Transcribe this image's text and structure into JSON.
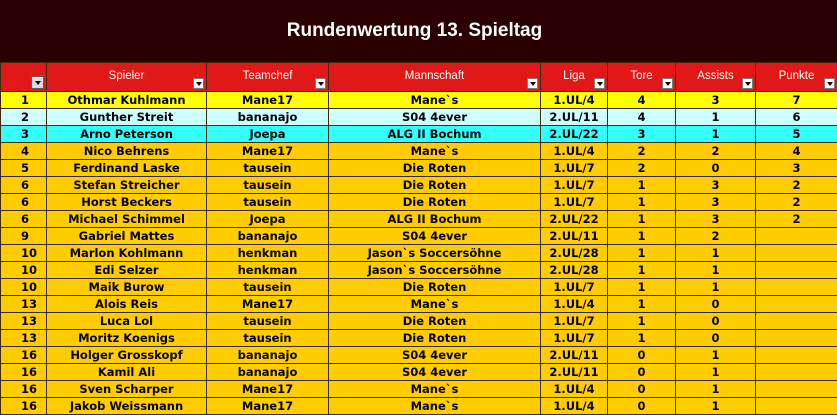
{
  "title": "Rundenwertung 13. Spieltag",
  "columns": [
    "",
    "Spieler",
    "Teamchef",
    "Mannschaft",
    "Liga",
    "Tore",
    "Assists",
    "Punkte"
  ],
  "colors": {
    "title_bg": "#2b0000",
    "header_bg": "#e01818",
    "row_first": "#ffff00",
    "row_second": "#ccffff",
    "row_third": "#33ffff",
    "row_default": "#ffcc00"
  },
  "rows": [
    {
      "rank": "1",
      "spieler": "Othmar Kuhlmann",
      "teamchef": "Mane17",
      "mannschaft": "Mane`s",
      "liga": "1.UL/4",
      "tore": "4",
      "assists": "3",
      "punkte": "7"
    },
    {
      "rank": "2",
      "spieler": "Gunther Streit",
      "teamchef": "bananajo",
      "mannschaft": "S04 4ever",
      "liga": "2.UL/11",
      "tore": "4",
      "assists": "1",
      "punkte": "6"
    },
    {
      "rank": "3",
      "spieler": "Arno Peterson",
      "teamchef": "Joepa",
      "mannschaft": "ALG II Bochum",
      "liga": "2.UL/22",
      "tore": "3",
      "assists": "1",
      "punkte": "5"
    },
    {
      "rank": "4",
      "spieler": "Nico Behrens",
      "teamchef": "Mane17",
      "mannschaft": "Mane`s",
      "liga": "1.UL/4",
      "tore": "2",
      "assists": "2",
      "punkte": "4"
    },
    {
      "rank": "5",
      "spieler": "Ferdinand Laske",
      "teamchef": "tausein",
      "mannschaft": "Die Roten",
      "liga": "1.UL/7",
      "tore": "2",
      "assists": "0",
      "punkte": "3"
    },
    {
      "rank": "6",
      "spieler": "Stefan Streicher",
      "teamchef": "tausein",
      "mannschaft": "Die Roten",
      "liga": "1.UL/7",
      "tore": "1",
      "assists": "3",
      "punkte": "2"
    },
    {
      "rank": "6",
      "spieler": "Horst Beckers",
      "teamchef": "tausein",
      "mannschaft": "Die Roten",
      "liga": "1.UL/7",
      "tore": "1",
      "assists": "3",
      "punkte": "2"
    },
    {
      "rank": "6",
      "spieler": "Michael Schimmel",
      "teamchef": "Joepa",
      "mannschaft": "ALG II Bochum",
      "liga": "2.UL/22",
      "tore": "1",
      "assists": "3",
      "punkte": "2"
    },
    {
      "rank": "9",
      "spieler": "Gabriel Mattes",
      "teamchef": "bananajo",
      "mannschaft": "S04 4ever",
      "liga": "2.UL/11",
      "tore": "1",
      "assists": "2",
      "punkte": ""
    },
    {
      "rank": "10",
      "spieler": "Marlon Kohlmann",
      "teamchef": "henkman",
      "mannschaft": "Jason`s Soccersöhne",
      "liga": "2.UL/28",
      "tore": "1",
      "assists": "1",
      "punkte": ""
    },
    {
      "rank": "10",
      "spieler": "Edi Selzer",
      "teamchef": "henkman",
      "mannschaft": "Jason`s Soccersöhne",
      "liga": "2.UL/28",
      "tore": "1",
      "assists": "1",
      "punkte": ""
    },
    {
      "rank": "10",
      "spieler": "Maik Burow",
      "teamchef": "tausein",
      "mannschaft": "Die Roten",
      "liga": "1.UL/7",
      "tore": "1",
      "assists": "1",
      "punkte": ""
    },
    {
      "rank": "13",
      "spieler": "Alois Reis",
      "teamchef": "Mane17",
      "mannschaft": "Mane`s",
      "liga": "1.UL/4",
      "tore": "1",
      "assists": "0",
      "punkte": ""
    },
    {
      "rank": "13",
      "spieler": "Luca Lol",
      "teamchef": "tausein",
      "mannschaft": "Die Roten",
      "liga": "1.UL/7",
      "tore": "1",
      "assists": "0",
      "punkte": ""
    },
    {
      "rank": "13",
      "spieler": "Moritz Koenigs",
      "teamchef": "tausein",
      "mannschaft": "Die Roten",
      "liga": "1.UL/7",
      "tore": "1",
      "assists": "0",
      "punkte": ""
    },
    {
      "rank": "16",
      "spieler": "Holger Grosskopf",
      "teamchef": "bananajo",
      "mannschaft": "S04 4ever",
      "liga": "2.UL/11",
      "tore": "0",
      "assists": "1",
      "punkte": ""
    },
    {
      "rank": "16",
      "spieler": "Kamil Ali",
      "teamchef": "bananajo",
      "mannschaft": "S04 4ever",
      "liga": "2.UL/11",
      "tore": "0",
      "assists": "1",
      "punkte": ""
    },
    {
      "rank": "16",
      "spieler": "Sven Scharper",
      "teamchef": "Mane17",
      "mannschaft": "Mane`s",
      "liga": "1.UL/4",
      "tore": "0",
      "assists": "1",
      "punkte": ""
    },
    {
      "rank": "16",
      "spieler": "Jakob Weissmann",
      "teamchef": "Mane17",
      "mannschaft": "Mane`s",
      "liga": "1.UL/4",
      "tore": "0",
      "assists": "1",
      "punkte": ""
    }
  ]
}
